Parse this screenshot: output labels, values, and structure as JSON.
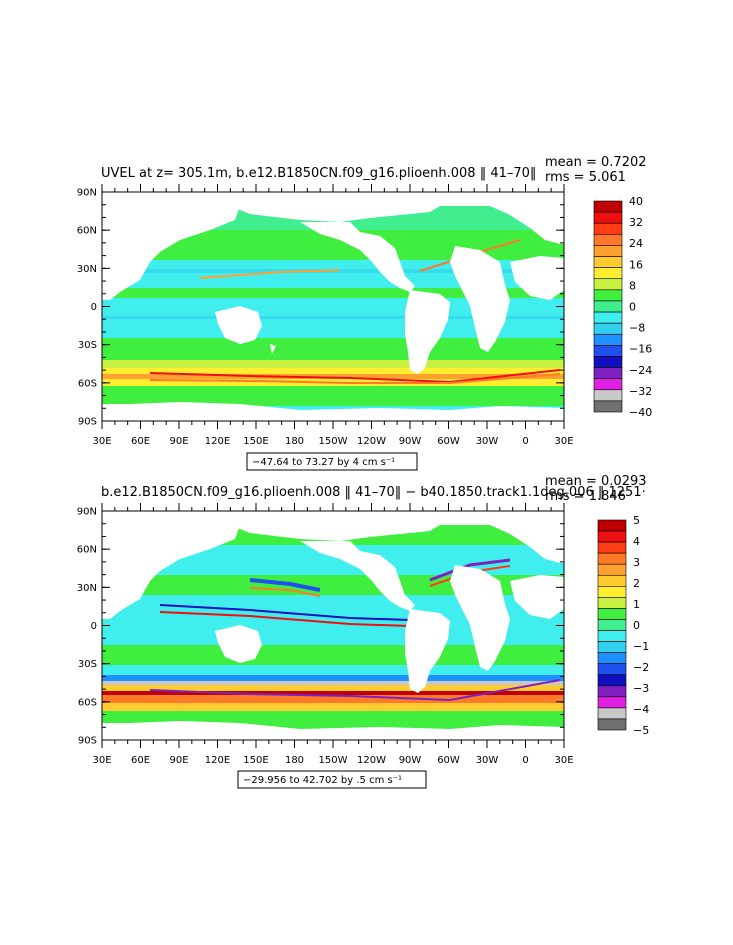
{
  "panels": [
    {
      "title": "UVEL at z= 305.1m, b.e12.B1850CN.f09_g16.plioenh.008 ‖ 41–70‖",
      "mean_text": "mean = 0.7202",
      "rms_text": "rms = 5.061",
      "range_text": "−47.64 to 73.27 by 4 cm s⁻¹",
      "colorbar_labels": [
        "40",
        "32",
        "24",
        "16",
        "8",
        "0",
        "−8",
        "−16",
        "−24",
        "−32",
        "−40"
      ],
      "colorbar_colors": [
        "#c00000",
        "#ee1010",
        "#ff3c14",
        "#ff7a28",
        "#ffa030",
        "#ffcc30",
        "#ffee30",
        "#c8f040",
        "#40ee40",
        "#40ee90",
        "#40eeee",
        "#30d0ee",
        "#1e90ff",
        "#2050ee",
        "#1010c0",
        "#8020c0",
        "#e020e0",
        "#c8c8c8",
        "#707070"
      ]
    },
    {
      "title": "b.e12.B1850CN.f09_g16.plioenh.008 ‖ 41–70‖ − b40.1850.track1.1deg.006 ‖ 1251·",
      "mean_text": "mean = 0.0293",
      "rms_text": "rms = 1.846",
      "range_text": "−29.956 to 42.702 by .5 cm s⁻¹",
      "colorbar_labels": [
        "5",
        "4",
        "3",
        "2",
        "1",
        "0",
        "−1",
        "−2",
        "−3",
        "−4",
        "−5"
      ],
      "colorbar_colors": [
        "#c00000",
        "#ee1010",
        "#ff3c14",
        "#ff7a28",
        "#ffa030",
        "#ffcc30",
        "#ffee30",
        "#c8f040",
        "#40ee40",
        "#40ee90",
        "#40eeee",
        "#30d0ee",
        "#1e90ff",
        "#2050ee",
        "#1010c0",
        "#8020c0",
        "#e020e0",
        "#c8c8c8",
        "#707070"
      ]
    }
  ],
  "axes": {
    "lat_labels": [
      "90N",
      "60N",
      "30N",
      "0",
      "30S",
      "60S",
      "90S"
    ],
    "lon_labels": [
      "30E",
      "60E",
      "90E",
      "120E",
      "150E",
      "180",
      "150W",
      "120W",
      "90W",
      "60W",
      "30W",
      "0",
      "30E"
    ]
  },
  "colors": {
    "land": "#ffffff",
    "ocean_base": "#3ce8e0",
    "green_band": "#40ee40",
    "polar": "#40ee90"
  }
}
